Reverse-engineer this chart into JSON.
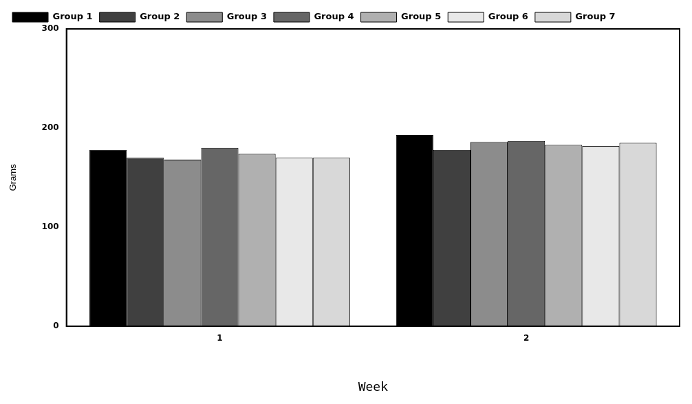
{
  "chart_data": {
    "type": "bar",
    "xlabel": "Week",
    "ylabel": "Grams",
    "categories": [
      "1",
      "2"
    ],
    "series": [
      {
        "name": "Group 1",
        "color": "#000000",
        "values": [
          178,
          193
        ]
      },
      {
        "name": "Group 2",
        "color": "#404040",
        "values": [
          170,
          178
        ]
      },
      {
        "name": "Group 3",
        "color": "#8c8c8c",
        "values": [
          168,
          186
        ]
      },
      {
        "name": "Group 4",
        "color": "#666666",
        "values": [
          180,
          187
        ]
      },
      {
        "name": "Group 5",
        "color": "#b0b0b0",
        "values": [
          174,
          183
        ]
      },
      {
        "name": "Group 6",
        "color": "#e8e8e8",
        "values": [
          170,
          182
        ]
      },
      {
        "name": "Group 7",
        "color": "#d8d8d8",
        "values": [
          170,
          185
        ]
      }
    ],
    "ylim": [
      0,
      300
    ],
    "yticks": [
      0,
      100,
      200,
      300
    ],
    "grid": false,
    "legend": "top"
  }
}
